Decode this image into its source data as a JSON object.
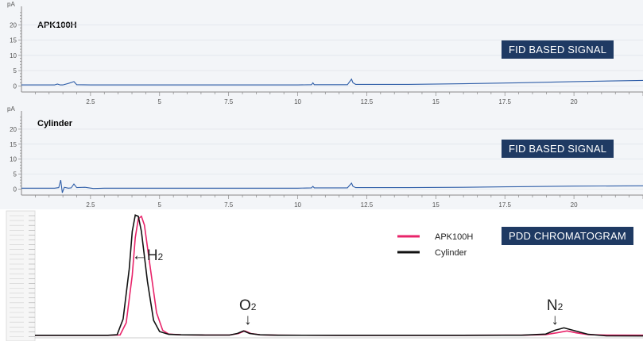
{
  "chart_data": [
    {
      "type": "line",
      "panel_title": "APK100H",
      "badge": "FID BASED SIGNAL",
      "y_unit": "pA",
      "yticks": [
        "0",
        "5",
        "10",
        "15",
        "20"
      ],
      "xticks": [
        "2.5",
        "5",
        "7.5",
        "10",
        "12.5",
        "15",
        "17.5",
        "20"
      ],
      "xlim": [
        0,
        22.5
      ],
      "ylim": [
        -2,
        25
      ],
      "series": [
        {
          "color": "#2f5ea8",
          "x": [
            0,
            1.2,
            1.3,
            1.4,
            1.5,
            1.7,
            1.9,
            2.0,
            2.5,
            5,
            7.5,
            10,
            10.5,
            10.55,
            10.6,
            11.8,
            11.95,
            12.0,
            12.1,
            14,
            16,
            18,
            20,
            22.5
          ],
          "y": [
            0.3,
            0.3,
            0.6,
            0.3,
            0.3,
            0.8,
            1.4,
            0.4,
            0.3,
            0.3,
            0.3,
            0.3,
            0.4,
            1.0,
            0.4,
            0.4,
            2.2,
            1.0,
            0.5,
            0.5,
            0.7,
            1.0,
            1.4,
            1.8
          ]
        }
      ]
    },
    {
      "type": "line",
      "panel_title": "Cylinder",
      "badge": "FID BASED SIGNAL",
      "y_unit": "pA",
      "yticks": [
        "0",
        "5",
        "10",
        "15",
        "20"
      ],
      "xticks": [
        "2.5",
        "5",
        "7.5",
        "10",
        "12.5",
        "15",
        "17.5",
        "20"
      ],
      "xlim": [
        0,
        22.5
      ],
      "ylim": [
        -2,
        25
      ],
      "series": [
        {
          "color": "#2f5ea8",
          "x": [
            0,
            1.2,
            1.35,
            1.42,
            1.48,
            1.55,
            1.7,
            1.8,
            1.9,
            2.0,
            2.3,
            2.6,
            3,
            5,
            7.5,
            10,
            10.5,
            10.55,
            10.6,
            11.8,
            11.95,
            12.0,
            12.1,
            14,
            16,
            18,
            20,
            22.5
          ],
          "y": [
            0.3,
            0.3,
            0.5,
            3.0,
            -1.2,
            0.6,
            0.3,
            0.4,
            1.7,
            0.5,
            0.6,
            0.2,
            0.3,
            0.3,
            0.3,
            0.3,
            0.4,
            0.9,
            0.4,
            0.4,
            2.0,
            0.9,
            0.5,
            0.5,
            0.6,
            0.8,
            1.0,
            1.1
          ]
        }
      ]
    },
    {
      "type": "line",
      "badge": "PDD CHROMATOGRAM",
      "xlim": [
        0,
        10
      ],
      "ylim": [
        0,
        100
      ],
      "legend": [
        "APK100H",
        "Cylinder"
      ],
      "legend_position": "top-right",
      "annotations": [
        {
          "text": "H",
          "sub": "2",
          "prefix": "←",
          "x": 1.85,
          "y": 62
        },
        {
          "text": "O",
          "sub": "2",
          "suffix": "↓",
          "x": 3.5,
          "y": 22
        },
        {
          "text": "N",
          "sub": "2",
          "suffix": "↓",
          "x": 8.55,
          "y": 22
        }
      ],
      "series": [
        {
          "name": "APK100H",
          "color": "#e8246a",
          "x": [
            0,
            1.2,
            1.4,
            1.5,
            1.6,
            1.65,
            1.7,
            1.75,
            1.8,
            1.9,
            2.0,
            2.1,
            2.2,
            2.4,
            2.8,
            3.2,
            3.35,
            3.45,
            3.55,
            3.7,
            4,
            5,
            6,
            7,
            8,
            8.4,
            8.6,
            8.75,
            8.9,
            9.1,
            9.4,
            10
          ],
          "y": [
            2,
            2,
            2.3,
            12,
            50,
            80,
            95,
            97,
            90,
            55,
            20,
            6,
            3,
            2.4,
            2.2,
            2.2,
            3.5,
            5.5,
            3.5,
            2.4,
            2.1,
            2,
            2,
            2,
            2.1,
            2.6,
            4.2,
            5.5,
            4.0,
            2.6,
            2.2,
            2.1
          ]
        },
        {
          "name": "Cylinder",
          "color": "#111111",
          "x": [
            0,
            1.2,
            1.35,
            1.45,
            1.55,
            1.6,
            1.65,
            1.7,
            1.75,
            1.85,
            1.95,
            2.05,
            2.2,
            2.4,
            2.8,
            3.2,
            3.33,
            3.43,
            3.53,
            3.7,
            4,
            5,
            6,
            7,
            8,
            8.4,
            8.55,
            8.7,
            8.85,
            9.1,
            9.4,
            10
          ],
          "y": [
            2,
            2,
            2.5,
            15,
            55,
            85,
            98,
            97,
            85,
            45,
            14,
            5,
            2.8,
            2.4,
            2.2,
            2.2,
            3.5,
            5.5,
            3.5,
            2.4,
            2.1,
            2,
            2,
            2,
            2.1,
            3.0,
            6.0,
            8.0,
            6.0,
            2.8,
            1.6,
            1.5
          ]
        }
      ]
    }
  ]
}
